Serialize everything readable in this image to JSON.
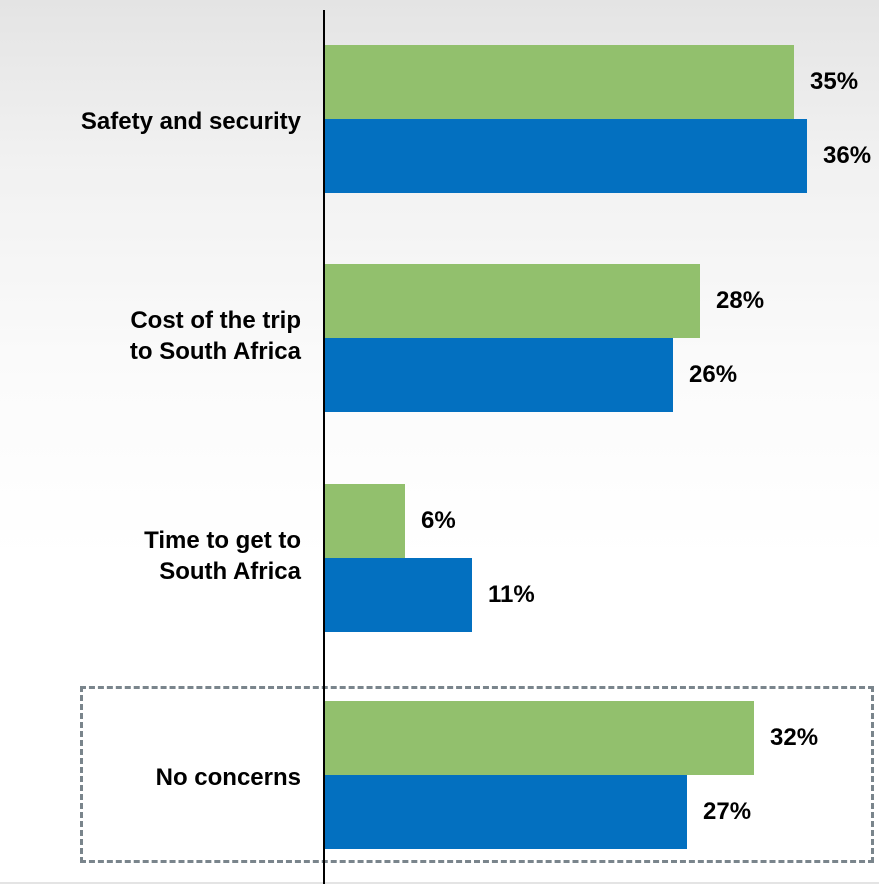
{
  "chart_data": {
    "type": "bar",
    "orientation": "horizontal",
    "categories": [
      "Safety and security",
      "Cost of the trip\nto South Africa",
      "Time to get to\nSouth Africa",
      "No concerns"
    ],
    "series": [
      {
        "values": [
          35,
          28,
          6,
          32
        ],
        "color": "#92c06d"
      },
      {
        "values": [
          36,
          26,
          11,
          27
        ],
        "color": "#0370c0"
      }
    ],
    "value_labels": [
      [
        "35%",
        "28%",
        "6%",
        "32%"
      ],
      [
        "36%",
        "26%",
        "11%",
        "27%"
      ]
    ],
    "xlim": [
      0,
      40
    ],
    "grid": false,
    "legend": "none",
    "highlighted_category": "No concerns",
    "highlight_border_color": "#7a858c"
  }
}
